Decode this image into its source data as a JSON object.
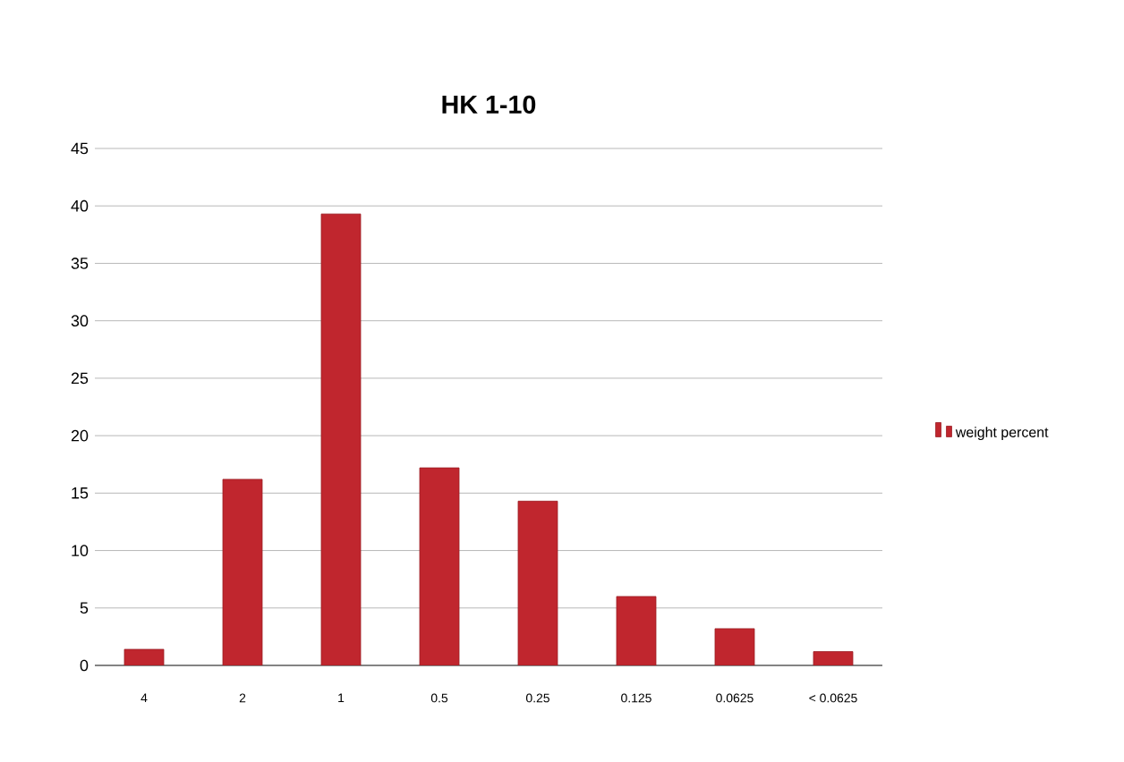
{
  "chart_data": {
    "type": "bar",
    "title": "HK 1-10",
    "categories": [
      "4",
      "2",
      "1",
      "0.5",
      "0.25",
      "0.125",
      "0.0625",
      "< 0.0625"
    ],
    "series": [
      {
        "name": "weight percent",
        "color": "#c0262e",
        "values": [
          1.4,
          16.2,
          39.3,
          17.2,
          14.3,
          6.0,
          3.2,
          1.2
        ]
      }
    ],
    "ylim": [
      0,
      45
    ],
    "yticks": [
      0,
      5,
      10,
      15,
      20,
      25,
      30,
      35,
      40,
      45
    ],
    "grid": "y",
    "legend": "right"
  }
}
